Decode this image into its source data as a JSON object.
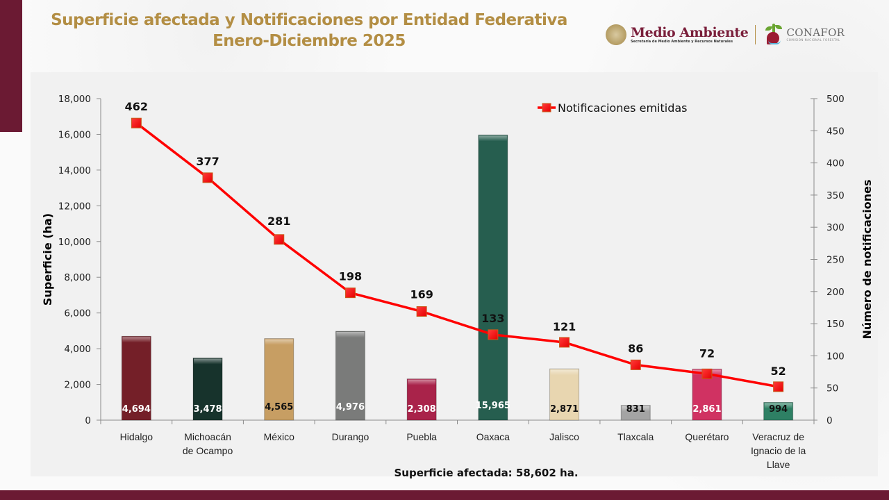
{
  "header": {
    "title_line1": "Superficie afectada y Notificaciones por Entidad Federativa",
    "title_line2": "Enero-Diciembre 2025"
  },
  "logos": {
    "medio_ambiente": "Medio Ambiente",
    "medio_ambiente_sub": "Secretaría de Medio Ambiente y Recursos Naturales",
    "conafor": "CONAFOR",
    "conafor_sub": "COMISIÓN NACIONAL FORESTAL"
  },
  "footer": {
    "total_label": "Superficie afectada: 58,602 ha."
  },
  "colors": {
    "title": "#b38e44",
    "brand_maroon": "#6b1a33",
    "line": "#ff0000",
    "marker": "#ff1a1a"
  },
  "chart_data": {
    "type": "bar+line",
    "title": "Superficie afectada y Notificaciones por Entidad Federativa, Enero-Diciembre 2025",
    "categories": [
      "Hidalgo",
      "Michoacán de Ocampo",
      "México",
      "Durango",
      "Puebla",
      "Oaxaca",
      "Jalisco",
      "Tlaxcala",
      "Querétaro",
      "Veracruz de Ignacio de la Llave"
    ],
    "category_lines": [
      [
        "Hidalgo"
      ],
      [
        "Michoacán",
        "de Ocampo"
      ],
      [
        "México"
      ],
      [
        "Durango"
      ],
      [
        "Puebla"
      ],
      [
        "Oaxaca"
      ],
      [
        "Jalisco"
      ],
      [
        "Tlaxcala"
      ],
      [
        "Querétaro"
      ],
      [
        "Veracruz de",
        "Ignacio de la",
        "Llave"
      ]
    ],
    "series": [
      {
        "name": "Superficie (ha)",
        "type": "bar",
        "axis": "left",
        "values": [
          4694,
          3478,
          4565,
          4976,
          2308,
          15965,
          2871,
          831,
          2861,
          994
        ],
        "labels": [
          "4,694",
          "3,478",
          "4,565",
          "4,976",
          "2,308",
          "15,965",
          "2,871",
          "831",
          "2,861",
          "994"
        ],
        "colors": [
          "#741f28",
          "#17332c",
          "#c79e63",
          "#7a7b7a",
          "#a9234a",
          "#265e4f",
          "#e8d6b0",
          "#a4a4a4",
          "#d03262",
          "#2e8064"
        ],
        "label_colors": [
          "#ffffff",
          "#ffffff",
          "#111111",
          "#ffffff",
          "#ffffff",
          "#ffffff",
          "#111111",
          "#111111",
          "#ffffff",
          "#111111"
        ]
      },
      {
        "name": "Notificaciones emitidas",
        "type": "line",
        "axis": "right",
        "values": [
          462,
          377,
          281,
          198,
          169,
          133,
          121,
          86,
          72,
          52
        ],
        "labels": [
          "462",
          "377",
          "281",
          "198",
          "169",
          "133",
          "121",
          "86",
          "72",
          "52"
        ]
      }
    ],
    "ylabel": "Superficie (ha)",
    "y2label": "Número de notificaciones",
    "ylim": [
      0,
      18000
    ],
    "y2lim": [
      0,
      500
    ],
    "yticks": [
      "0",
      "2,000",
      "4,000",
      "6,000",
      "8,000",
      "10,000",
      "12,000",
      "14,000",
      "16,000",
      "18,000"
    ],
    "y2ticks": [
      "0",
      "50",
      "100",
      "150",
      "200",
      "250",
      "300",
      "350",
      "400",
      "450",
      "500"
    ],
    "legend": {
      "entries": [
        "Notificaciones emitidas"
      ],
      "position": "top-right"
    },
    "grid": false
  }
}
